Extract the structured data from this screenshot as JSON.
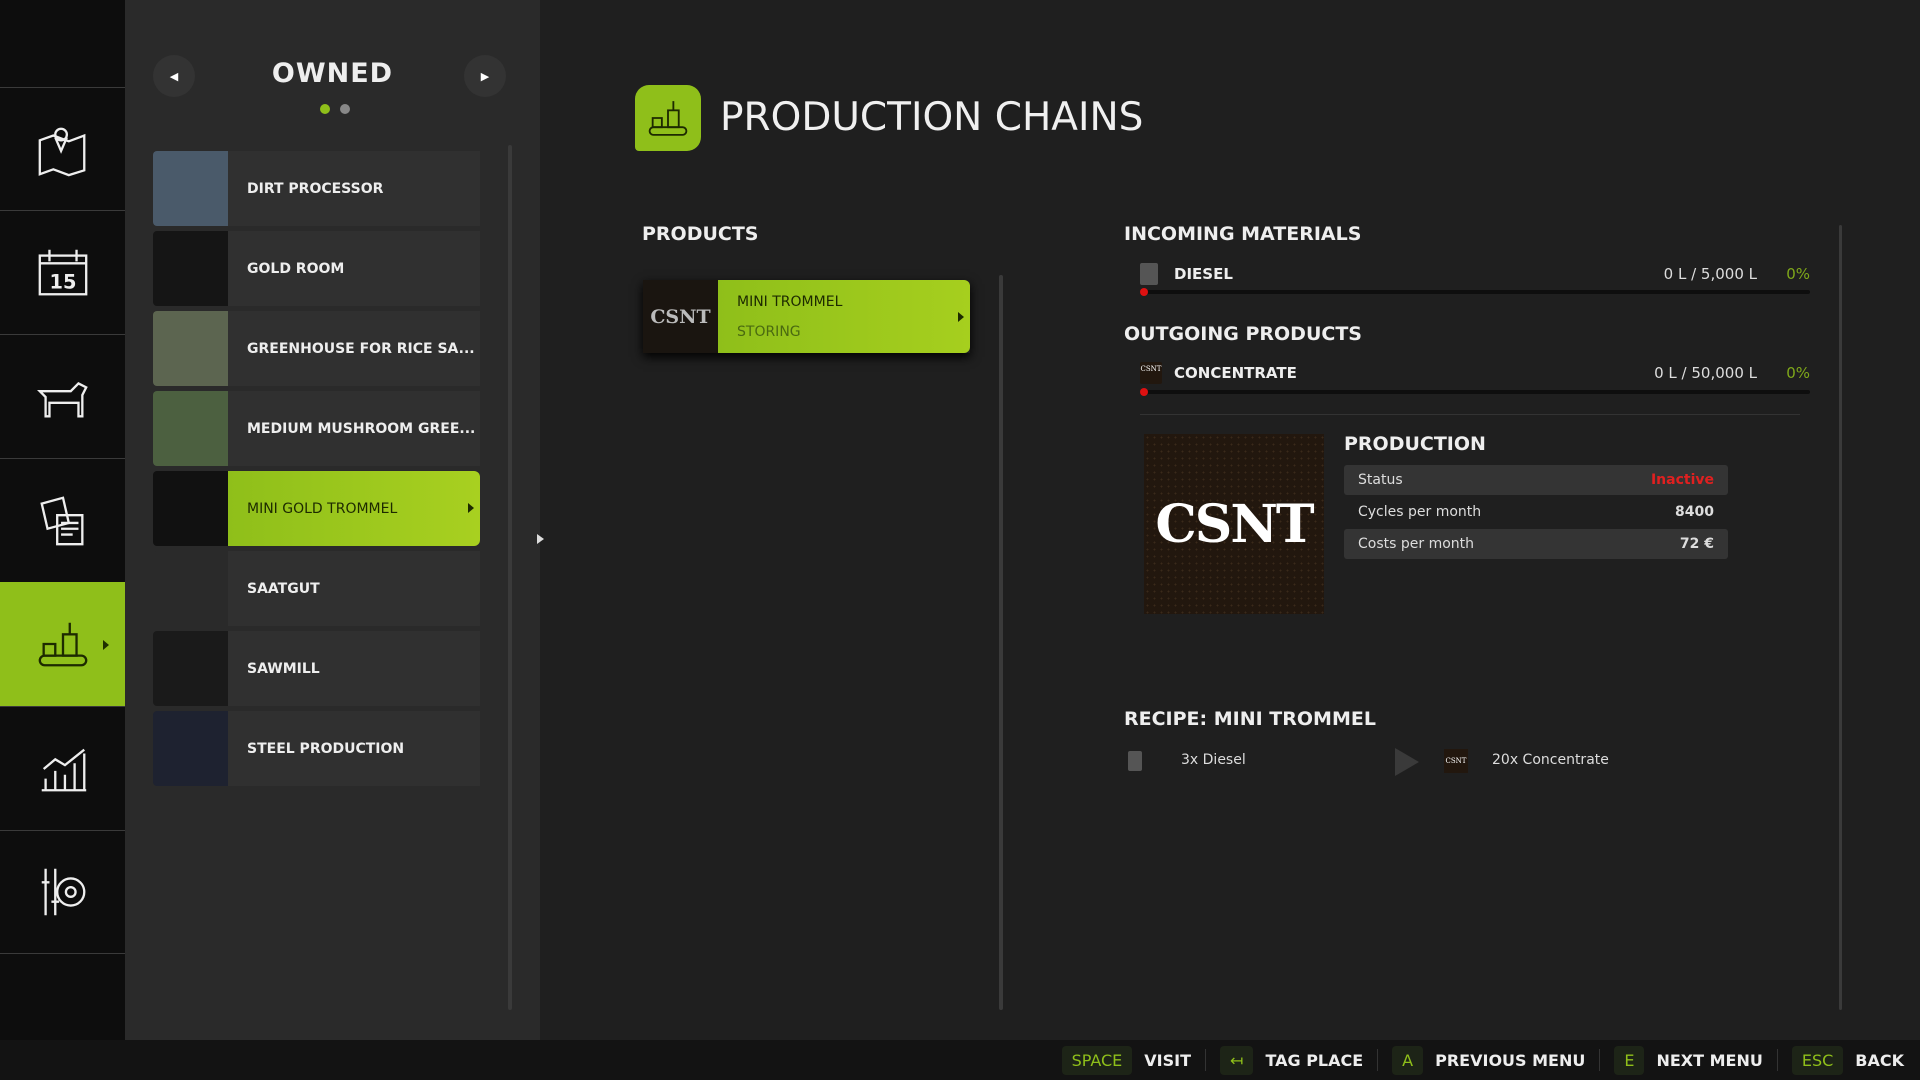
{
  "sidebar": {
    "items": [
      {
        "icon": "map-icon"
      },
      {
        "icon": "calendar-icon",
        "label": "15"
      },
      {
        "icon": "animals-icon"
      },
      {
        "icon": "contracts-icon"
      },
      {
        "icon": "production-icon",
        "active": true
      },
      {
        "icon": "statistics-icon"
      },
      {
        "icon": "settings-icon"
      }
    ]
  },
  "nav": {
    "title": "OWNED",
    "page_count": 2,
    "current_page": 1,
    "items": [
      {
        "label": "DIRT PROCESSOR",
        "thumb": "#4a5a6a"
      },
      {
        "label": "GOLD ROOM",
        "thumb": "#151515"
      },
      {
        "label": "GREENHOUSE FOR RICE SA...",
        "thumb": "#5c6550"
      },
      {
        "label": "MEDIUM MUSHROOM GREE...",
        "thumb": "#4c6040"
      },
      {
        "label": "MINI GOLD TROMMEL",
        "thumb": "#111111",
        "active": true
      },
      {
        "label": "SAATGUT",
        "thumb": "#2a2a2a"
      },
      {
        "label": "SAWMILL",
        "thumb": "#1a1a1a"
      },
      {
        "label": "STEEL PRODUCTION",
        "thumb": "#1e2230"
      }
    ]
  },
  "header": {
    "title": "PRODUCTION CHAINS"
  },
  "products": {
    "label": "PRODUCTS",
    "items": [
      {
        "name": "MINI TROMMEL",
        "status": "STORING",
        "logo": "CSNT"
      }
    ]
  },
  "incoming": {
    "label": "INCOMING MATERIALS",
    "items": [
      {
        "name": "DIESEL",
        "amount": "0 L / 5,000 L",
        "percent": "0%",
        "fill": 0
      }
    ]
  },
  "outgoing": {
    "label": "OUTGOING PRODUCTS",
    "items": [
      {
        "name": "CONCENTRATE",
        "amount": "0 L / 50,000 L",
        "percent": "0%",
        "fill": 0,
        "logo": "CSNT"
      }
    ]
  },
  "production": {
    "label": "PRODUCTION",
    "image_logo": "CSNT",
    "rows": [
      {
        "key": "Status",
        "value": "Inactive"
      },
      {
        "key": "Cycles per month",
        "value": "8400"
      },
      {
        "key": "Costs per month",
        "value": "72 €"
      }
    ]
  },
  "recipe": {
    "label": "RECIPE: MINI TROMMEL",
    "input": "3x Diesel",
    "output": "20x Concentrate",
    "output_logo": "CSNT"
  },
  "bottom": {
    "hints": [
      {
        "key": "SPACE",
        "label": "VISIT"
      },
      {
        "key": "↤",
        "label": "TAG PLACE"
      },
      {
        "key": "A",
        "label": "PREVIOUS MENU"
      },
      {
        "key": "E",
        "label": "NEXT MENU"
      },
      {
        "key": "ESC",
        "label": "BACK"
      }
    ]
  },
  "colors": {
    "accent": "#8fbf1a",
    "inactive": "#e02020",
    "percent": "#7fa81a"
  }
}
